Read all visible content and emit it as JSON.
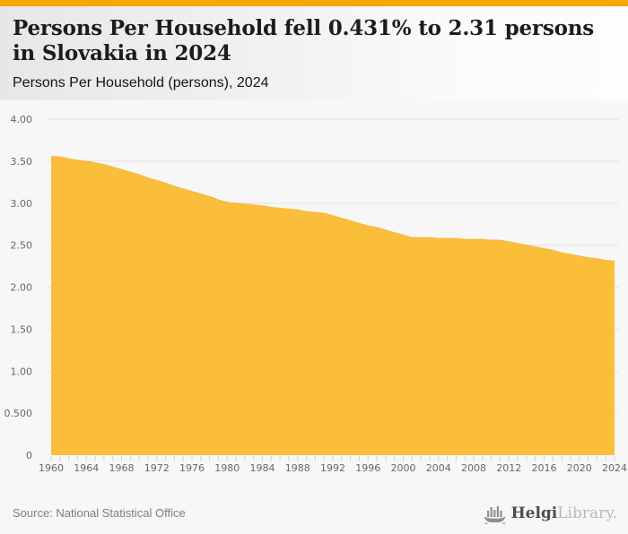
{
  "page": {
    "accent_color": "#F5A800",
    "background_color": "#F7F7F7"
  },
  "header": {
    "title": "Persons Per Household fell 0.431% to 2.31 persons in Slovakia in 2024",
    "subtitle": "Persons Per Household (persons), 2024"
  },
  "chart_data": {
    "type": "area",
    "title": "Persons Per Household fell 0.431% to 2.31 persons in Slovakia in 2024",
    "subtitle": "Persons Per Household (persons), 2024",
    "series_name": "Persons Per Household (persons)",
    "x": [
      1960,
      1961,
      1962,
      1963,
      1964,
      1965,
      1966,
      1967,
      1968,
      1969,
      1970,
      1971,
      1972,
      1973,
      1974,
      1975,
      1976,
      1977,
      1978,
      1979,
      1980,
      1981,
      1982,
      1983,
      1984,
      1985,
      1986,
      1987,
      1988,
      1989,
      1990,
      1991,
      1992,
      1993,
      1994,
      1995,
      1996,
      1997,
      1998,
      1999,
      2000,
      2001,
      2002,
      2003,
      2004,
      2005,
      2006,
      2007,
      2008,
      2009,
      2010,
      2011,
      2012,
      2013,
      2014,
      2015,
      2016,
      2017,
      2018,
      2019,
      2020,
      2021,
      2022,
      2023,
      2024
    ],
    "values": [
      3.56,
      3.55,
      3.53,
      3.51,
      3.5,
      3.48,
      3.46,
      3.43,
      3.4,
      3.37,
      3.34,
      3.3,
      3.27,
      3.24,
      3.2,
      3.17,
      3.14,
      3.11,
      3.08,
      3.04,
      3.01,
      3.0,
      2.99,
      2.98,
      2.97,
      2.95,
      2.94,
      2.93,
      2.92,
      2.9,
      2.89,
      2.88,
      2.85,
      2.82,
      2.79,
      2.76,
      2.73,
      2.71,
      2.68,
      2.65,
      2.62,
      2.59,
      2.59,
      2.59,
      2.58,
      2.58,
      2.58,
      2.57,
      2.57,
      2.57,
      2.56,
      2.56,
      2.54,
      2.52,
      2.5,
      2.48,
      2.46,
      2.44,
      2.41,
      2.39,
      2.37,
      2.35,
      2.34,
      2.32,
      2.31
    ],
    "xlim": [
      1960,
      2024
    ],
    "ylim": [
      0,
      4
    ],
    "grid": true,
    "legend": "none",
    "y_ticks": [
      {
        "value": 4.0,
        "label": "4.00"
      },
      {
        "value": 3.5,
        "label": "3.50"
      },
      {
        "value": 3.0,
        "label": "3.00"
      },
      {
        "value": 2.5,
        "label": "2.50"
      },
      {
        "value": 2.0,
        "label": "2.00"
      },
      {
        "value": 1.5,
        "label": "1.50"
      },
      {
        "value": 1.0,
        "label": "1.00"
      },
      {
        "value": 0.5,
        "label": "0.500"
      },
      {
        "value": 0,
        "label": "0"
      }
    ],
    "x_tick_years": [
      1960,
      1964,
      1968,
      1972,
      1976,
      1980,
      1984,
      1988,
      1992,
      1996,
      2000,
      2004,
      2008,
      2012,
      2016,
      2020,
      2024
    ],
    "fill_color": "#FBBE3B",
    "edge_color": "#F3AC1B",
    "gridline_color": "#E3E3E3",
    "tick_color": "#CBD2E1",
    "axis_label_color": "#686868"
  },
  "footer": {
    "source": "Source: National Statistical Office",
    "logo": {
      "brand_primary": "Helgi",
      "brand_secondary": "Library.",
      "icon": "viking-ship-bar-chart"
    }
  }
}
